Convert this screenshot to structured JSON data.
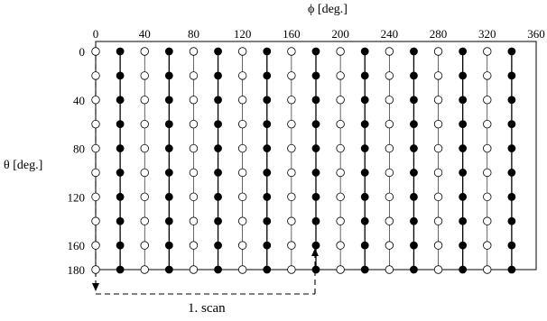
{
  "diagram": {
    "phi_axis": {
      "label": "ϕ [deg.]",
      "ticks": [
        "0",
        "40",
        "80",
        "120",
        "160",
        "200",
        "240",
        "280",
        "320",
        "360"
      ],
      "range": [
        0,
        360
      ]
    },
    "theta_axis": {
      "label": "θ [deg.]",
      "ticks": [
        "0",
        "40",
        "80",
        "120",
        "160",
        "180"
      ],
      "tick_values": [
        0,
        40,
        80,
        120,
        160,
        180
      ],
      "range": [
        0,
        180
      ]
    },
    "grid": {
      "phi_step": 20,
      "phi_columns": [
        0,
        20,
        40,
        60,
        80,
        100,
        120,
        140,
        160,
        180,
        200,
        220,
        240,
        260,
        280,
        300,
        320,
        340
      ],
      "theta_step": 20,
      "theta_rows": [
        0,
        20,
        40,
        60,
        80,
        100,
        120,
        140,
        160,
        180
      ],
      "filled_phi_columns": [
        20,
        60,
        100,
        140,
        180,
        220,
        260,
        300,
        340
      ],
      "open_phi_columns": [
        0,
        40,
        80,
        120,
        160,
        200,
        240,
        280,
        320
      ]
    },
    "scan_annotation": {
      "label": "1. scan",
      "from_phi": 0,
      "to_phi": 180
    }
  }
}
